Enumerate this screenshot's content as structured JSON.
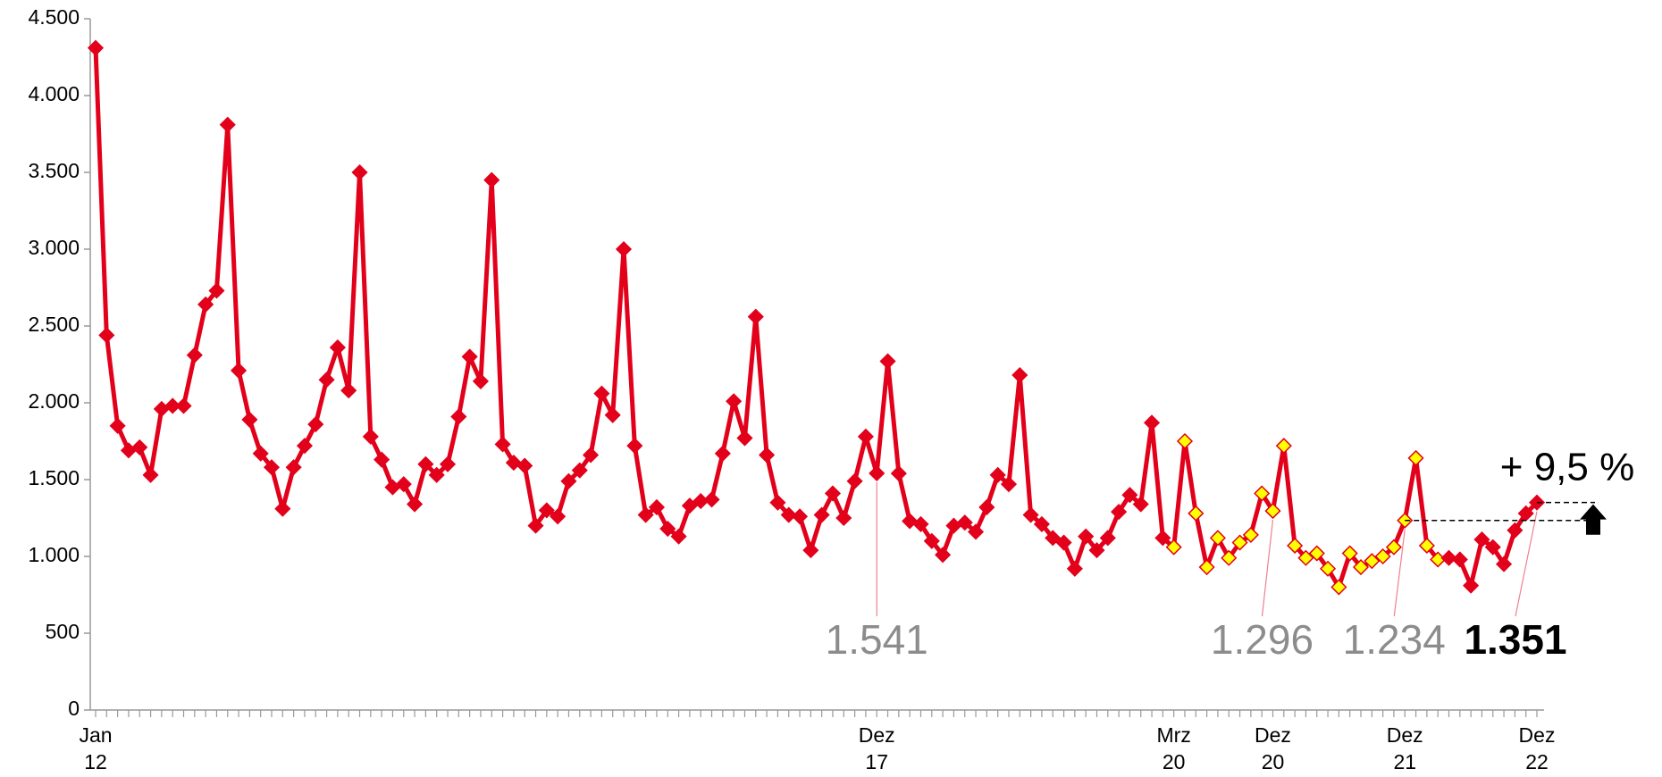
{
  "chart_data": {
    "type": "line",
    "categories": [
      [
        "Jan",
        "12"
      ],
      null,
      null,
      null,
      null,
      null,
      null,
      null,
      null,
      null,
      null,
      null,
      null,
      null,
      null,
      null,
      null,
      null,
      null,
      null,
      null,
      null,
      null,
      null,
      null,
      null,
      null,
      null,
      null,
      null,
      null,
      null,
      null,
      null,
      null,
      null,
      null,
      null,
      null,
      null,
      null,
      null,
      null,
      null,
      null,
      null,
      null,
      null,
      null,
      null,
      null,
      null,
      null,
      null,
      null,
      null,
      null,
      null,
      null,
      null,
      null,
      null,
      null,
      null,
      null,
      null,
      null,
      null,
      null,
      null,
      null,
      [
        "Dez",
        "17"
      ],
      null,
      null,
      null,
      null,
      null,
      null,
      null,
      null,
      null,
      null,
      null,
      null,
      null,
      null,
      null,
      null,
      null,
      null,
      null,
      null,
      null,
      null,
      null,
      null,
      null,
      null,
      [
        "Mrz",
        "20"
      ],
      null,
      null,
      null,
      null,
      null,
      null,
      null,
      null,
      [
        "Dez",
        "20"
      ],
      null,
      null,
      null,
      null,
      null,
      null,
      null,
      null,
      null,
      null,
      null,
      [
        "Dez",
        "21"
      ],
      null,
      null,
      null,
      null,
      null,
      null,
      null,
      null,
      null,
      null,
      null,
      [
        "Dez",
        "22"
      ]
    ],
    "values": [
      4310,
      2440,
      1850,
      1690,
      1710,
      1530,
      1960,
      1980,
      1980,
      2310,
      2640,
      2730,
      3810,
      2210,
      1890,
      1670,
      1580,
      1310,
      1580,
      1720,
      1860,
      2150,
      2360,
      2080,
      3500,
      1780,
      1630,
      1450,
      1470,
      1340,
      1600,
      1530,
      1600,
      1910,
      2300,
      2140,
      3450,
      1730,
      1610,
      1590,
      1200,
      1300,
      1260,
      1490,
      1560,
      1660,
      2060,
      1920,
      3000,
      1720,
      1270,
      1320,
      1180,
      1130,
      1330,
      1360,
      1370,
      1670,
      2010,
      1770,
      2560,
      1660,
      1350,
      1270,
      1260,
      1040,
      1270,
      1410,
      1250,
      1490,
      1780,
      1541,
      2270,
      1540,
      1230,
      1210,
      1100,
      1010,
      1200,
      1220,
      1160,
      1320,
      1530,
      1470,
      2180,
      1270,
      1210,
      1120,
      1090,
      920,
      1130,
      1040,
      1120,
      1290,
      1400,
      1340,
      1870,
      1120,
      1060,
      1750,
      1280,
      930,
      1120,
      990,
      1090,
      1140,
      1410,
      1296,
      1720,
      1070,
      990,
      1020,
      920,
      800,
      1020,
      930,
      970,
      1000,
      1060,
      1234,
      1640,
      1070,
      980,
      990,
      980,
      810,
      1110,
      1060,
      950,
      1170,
      1280,
      1351
    ],
    "value_labels": [
      null,
      null,
      null,
      null,
      null,
      null,
      null,
      null,
      null,
      null,
      null,
      null,
      null,
      null,
      null,
      null,
      null,
      null,
      null,
      null,
      null,
      null,
      null,
      null,
      null,
      null,
      null,
      null,
      null,
      null,
      null,
      null,
      null,
      null,
      null,
      null,
      null,
      null,
      null,
      null,
      null,
      null,
      null,
      null,
      null,
      null,
      null,
      null,
      null,
      null,
      null,
      null,
      null,
      null,
      null,
      null,
      null,
      null,
      null,
      null,
      null,
      null,
      null,
      null,
      null,
      null,
      null,
      null,
      null,
      null,
      null,
      "1.541",
      null,
      null,
      null,
      null,
      null,
      null,
      null,
      null,
      null,
      null,
      null,
      null,
      null,
      null,
      null,
      null,
      null,
      null,
      null,
      null,
      null,
      null,
      null,
      null,
      null,
      null,
      null,
      null,
      null,
      null,
      null,
      null,
      null,
      null,
      null,
      "1.296",
      null,
      null,
      null,
      null,
      null,
      null,
      null,
      null,
      null,
      null,
      null,
      "1.234",
      null,
      null,
      null,
      null,
      null,
      null,
      null,
      null,
      null,
      null,
      null,
      "1.351"
    ],
    "color": "#e2001a",
    "marker_colors": [
      "#e2001a",
      "#e2001a",
      "#e2001a",
      "#e2001a",
      "#e2001a",
      "#e2001a",
      "#e2001a",
      "#e2001a",
      "#e2001a",
      "#e2001a",
      "#e2001a",
      "#e2001a",
      "#e2001a",
      "#e2001a",
      "#e2001a",
      "#e2001a",
      "#e2001a",
      "#e2001a",
      "#e2001a",
      "#e2001a",
      "#e2001a",
      "#e2001a",
      "#e2001a",
      "#e2001a",
      "#e2001a",
      "#e2001a",
      "#e2001a",
      "#e2001a",
      "#e2001a",
      "#e2001a",
      "#e2001a",
      "#e2001a",
      "#e2001a",
      "#e2001a",
      "#e2001a",
      "#e2001a",
      "#e2001a",
      "#e2001a",
      "#e2001a",
      "#e2001a",
      "#e2001a",
      "#e2001a",
      "#e2001a",
      "#e2001a",
      "#e2001a",
      "#e2001a",
      "#e2001a",
      "#e2001a",
      "#e2001a",
      "#e2001a",
      "#e2001a",
      "#e2001a",
      "#e2001a",
      "#e2001a",
      "#e2001a",
      "#e2001a",
      "#e2001a",
      "#e2001a",
      "#e2001a",
      "#e2001a",
      "#e2001a",
      "#e2001a",
      "#e2001a",
      "#e2001a",
      "#e2001a",
      "#e2001a",
      "#e2001a",
      "#e2001a",
      "#e2001a",
      "#e2001a",
      "#e2001a",
      "#e2001a",
      "#e2001a",
      "#e2001a",
      "#e2001a",
      "#e2001a",
      "#e2001a",
      "#e2001a",
      "#e2001a",
      "#e2001a",
      "#e2001a",
      "#e2001a",
      "#e2001a",
      "#e2001a",
      "#e2001a",
      "#e2001a",
      "#e2001a",
      "#e2001a",
      "#e2001a",
      "#e2001a",
      "#e2001a",
      "#e2001a",
      "#e2001a",
      "#e2001a",
      "#e2001a",
      "#e2001a",
      "#e2001a",
      "#e2001a",
      "#ffff00",
      "#ffff00",
      "#ffff00",
      "#ffff00",
      "#ffff00",
      "#ffff00",
      "#ffff00",
      "#ffff00",
      "#ffff00",
      "#ffff00",
      "#ffff00",
      "#ffff00",
      "#ffff00",
      "#ffff00",
      "#ffff00",
      "#ffff00",
      "#ffff00",
      "#ffff00",
      "#ffff00",
      "#ffff00",
      "#ffff00",
      "#ffff00",
      "#ffff00",
      "#ffff00",
      "#ffff00",
      "#e2001a",
      "#e2001a",
      "#e2001a",
      "#e2001a",
      "#e2001a",
      "#e2001a",
      "#e2001a",
      "#e2001a",
      "#e2001a"
    ],
    "annotation": "+ 9,5 %",
    "ylim": [
      0,
      4500
    ],
    "yticks": [
      0,
      500,
      {
        "value": 1000,
        "label": "1.000"
      },
      {
        "value": 1500,
        "label": "1.500"
      },
      {
        "value": 2000,
        "label": "2.000"
      },
      {
        "value": 2500,
        "label": "2.500"
      },
      {
        "value": 3000,
        "label": "3.000"
      },
      {
        "value": 3500,
        "label": "3.500"
      },
      {
        "value": 4000,
        "label": "4.000"
      },
      {
        "value": 4500,
        "label": "4.500"
      }
    ],
    "grid": false
  }
}
